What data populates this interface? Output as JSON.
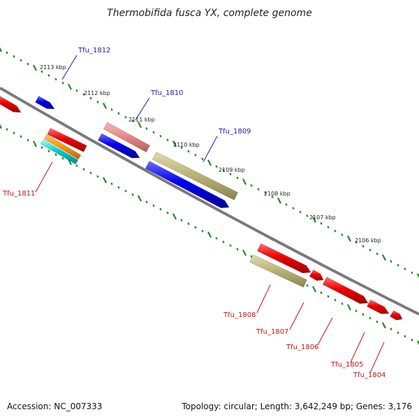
{
  "title": "Thermobifida fusca YX, complete genome",
  "footer": {
    "accession": "Accession: NC_007333",
    "summary": "Topology: circular; Length: 3,642,249 bp; Genes: 3,176"
  },
  "colors": {
    "backbone": "#7a7a7a",
    "tick_dots": "#228b22",
    "forward_label": "#1a1ab8",
    "reverse_label": "#cc1111"
  },
  "ruler_labels": [
    "2113 kbp",
    "2112 kbp",
    "2111 kbp",
    "2110 kbp",
    "2109 kbp",
    "2108 kbp",
    "2107 kbp",
    "2106 kbp"
  ],
  "gene_labels": {
    "forward": [
      "Tfu_1812",
      "Tfu_1810",
      "Tfu_1809"
    ],
    "reverse": [
      "Tfu_1811",
      "Tfu_1808",
      "Tfu_1807",
      "Tfu_1806",
      "Tfu_1805",
      "Tfu_1804"
    ]
  }
}
